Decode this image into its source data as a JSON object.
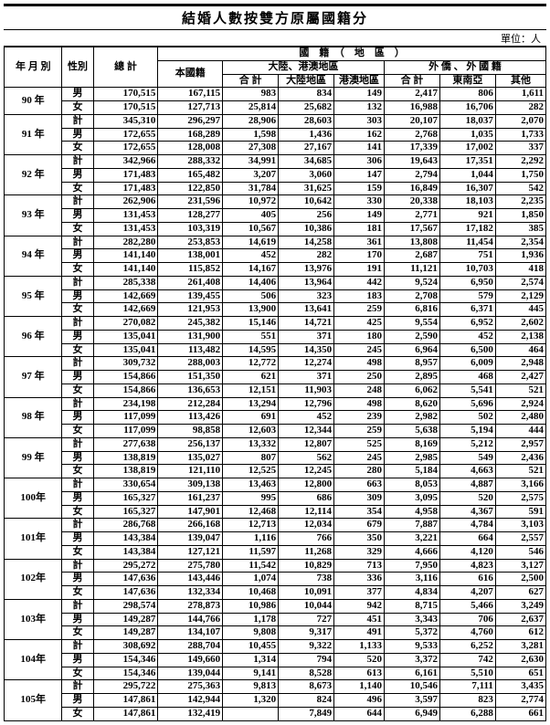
{
  "title": "結婚人數按雙方原屬國籍分",
  "unit_label": "單位：人",
  "headers": {
    "year": "年 月 別",
    "sex": "性別",
    "total": "總 計",
    "own_nat": "本國籍",
    "nat_region": "國　籍　（　地　區　）",
    "ml_hk_group": "大陸、港澳地區",
    "sub": "合 計",
    "mainland": "大陸地區",
    "hk": "港澳地區",
    "foreign_group": "外 僑 、 外 國 籍",
    "sea": "東南亞",
    "other": "其他"
  },
  "sex_labels": {
    "m": "男",
    "f": "女",
    "t": "計"
  },
  "rows": [
    {
      "year": "90 年",
      "data": [
        {
          "s": "m",
          "v": [
            "170,515",
            "167,115",
            "983",
            "834",
            "149",
            "2,417",
            "806",
            "1,611"
          ]
        },
        {
          "s": "f",
          "v": [
            "170,515",
            "127,713",
            "25,814",
            "25,682",
            "132",
            "16,988",
            "16,706",
            "282"
          ]
        }
      ]
    },
    {
      "year": "91 年",
      "data": [
        {
          "s": "t",
          "v": [
            "345,310",
            "296,297",
            "28,906",
            "28,603",
            "303",
            "20,107",
            "18,037",
            "2,070"
          ]
        },
        {
          "s": "m",
          "v": [
            "172,655",
            "168,289",
            "1,598",
            "1,436",
            "162",
            "2,768",
            "1,035",
            "1,733"
          ]
        },
        {
          "s": "f",
          "v": [
            "172,655",
            "128,008",
            "27,308",
            "27,167",
            "141",
            "17,339",
            "17,002",
            "337"
          ]
        }
      ]
    },
    {
      "year": "92 年",
      "data": [
        {
          "s": "t",
          "v": [
            "342,966",
            "288,332",
            "34,991",
            "34,685",
            "306",
            "19,643",
            "17,351",
            "2,292"
          ]
        },
        {
          "s": "m",
          "v": [
            "171,483",
            "165,482",
            "3,207",
            "3,060",
            "147",
            "2,794",
            "1,044",
            "1,750"
          ]
        },
        {
          "s": "f",
          "v": [
            "171,483",
            "122,850",
            "31,784",
            "31,625",
            "159",
            "16,849",
            "16,307",
            "542"
          ]
        }
      ]
    },
    {
      "year": "93 年",
      "data": [
        {
          "s": "t",
          "v": [
            "262,906",
            "231,596",
            "10,972",
            "10,642",
            "330",
            "20,338",
            "18,103",
            "2,235"
          ]
        },
        {
          "s": "m",
          "v": [
            "131,453",
            "128,277",
            "405",
            "256",
            "149",
            "2,771",
            "921",
            "1,850"
          ]
        },
        {
          "s": "f",
          "v": [
            "131,453",
            "103,319",
            "10,567",
            "10,386",
            "181",
            "17,567",
            "17,182",
            "385"
          ]
        }
      ]
    },
    {
      "year": "94 年",
      "data": [
        {
          "s": "t",
          "v": [
            "282,280",
            "253,853",
            "14,619",
            "14,258",
            "361",
            "13,808",
            "11,454",
            "2,354"
          ]
        },
        {
          "s": "m",
          "v": [
            "141,140",
            "138,001",
            "452",
            "282",
            "170",
            "2,687",
            "751",
            "1,936"
          ]
        },
        {
          "s": "f",
          "v": [
            "141,140",
            "115,852",
            "14,167",
            "13,976",
            "191",
            "11,121",
            "10,703",
            "418"
          ]
        }
      ]
    },
    {
      "year": "95 年",
      "data": [
        {
          "s": "t",
          "v": [
            "285,338",
            "261,408",
            "14,406",
            "13,964",
            "442",
            "9,524",
            "6,950",
            "2,574"
          ]
        },
        {
          "s": "m",
          "v": [
            "142,669",
            "139,455",
            "506",
            "323",
            "183",
            "2,708",
            "579",
            "2,129"
          ]
        },
        {
          "s": "f",
          "v": [
            "142,669",
            "121,953",
            "13,900",
            "13,641",
            "259",
            "6,816",
            "6,371",
            "445"
          ]
        }
      ]
    },
    {
      "year": "96 年",
      "data": [
        {
          "s": "t",
          "v": [
            "270,082",
            "245,382",
            "15,146",
            "14,721",
            "425",
            "9,554",
            "6,952",
            "2,602"
          ]
        },
        {
          "s": "m",
          "v": [
            "135,041",
            "131,900",
            "551",
            "371",
            "180",
            "2,590",
            "452",
            "2,138"
          ]
        },
        {
          "s": "f",
          "v": [
            "135,041",
            "113,482",
            "14,595",
            "14,350",
            "245",
            "6,964",
            "6,500",
            "464"
          ]
        }
      ]
    },
    {
      "year": "97 年",
      "data": [
        {
          "s": "t",
          "v": [
            "309,732",
            "288,003",
            "12,772",
            "12,274",
            "498",
            "8,957",
            "6,009",
            "2,948"
          ]
        },
        {
          "s": "m",
          "v": [
            "154,866",
            "151,350",
            "621",
            "371",
            "250",
            "2,895",
            "468",
            "2,427"
          ]
        },
        {
          "s": "f",
          "v": [
            "154,866",
            "136,653",
            "12,151",
            "11,903",
            "248",
            "6,062",
            "5,541",
            "521"
          ]
        }
      ]
    },
    {
      "year": "98 年",
      "data": [
        {
          "s": "t",
          "v": [
            "234,198",
            "212,284",
            "13,294",
            "12,796",
            "498",
            "8,620",
            "5,696",
            "2,924"
          ]
        },
        {
          "s": "m",
          "v": [
            "117,099",
            "113,426",
            "691",
            "452",
            "239",
            "2,982",
            "502",
            "2,480"
          ]
        },
        {
          "s": "f",
          "v": [
            "117,099",
            "98,858",
            "12,603",
            "12,344",
            "259",
            "5,638",
            "5,194",
            "444"
          ]
        }
      ]
    },
    {
      "year": "99 年",
      "data": [
        {
          "s": "t",
          "v": [
            "277,638",
            "256,137",
            "13,332",
            "12,807",
            "525",
            "8,169",
            "5,212",
            "2,957"
          ]
        },
        {
          "s": "m",
          "v": [
            "138,819",
            "135,027",
            "807",
            "562",
            "245",
            "2,985",
            "549",
            "2,436"
          ]
        },
        {
          "s": "f",
          "v": [
            "138,819",
            "121,110",
            "12,525",
            "12,245",
            "280",
            "5,184",
            "4,663",
            "521"
          ]
        }
      ]
    },
    {
      "year": "100年",
      "data": [
        {
          "s": "t",
          "v": [
            "330,654",
            "309,138",
            "13,463",
            "12,800",
            "663",
            "8,053",
            "4,887",
            "3,166"
          ]
        },
        {
          "s": "m",
          "v": [
            "165,327",
            "161,237",
            "995",
            "686",
            "309",
            "3,095",
            "520",
            "2,575"
          ]
        },
        {
          "s": "f",
          "v": [
            "165,327",
            "147,901",
            "12,468",
            "12,114",
            "354",
            "4,958",
            "4,367",
            "591"
          ]
        }
      ]
    },
    {
      "year": "101年",
      "data": [
        {
          "s": "t",
          "v": [
            "286,768",
            "266,168",
            "12,713",
            "12,034",
            "679",
            "7,887",
            "4,784",
            "3,103"
          ]
        },
        {
          "s": "m",
          "v": [
            "143,384",
            "139,047",
            "1,116",
            "766",
            "350",
            "3,221",
            "664",
            "2,557"
          ]
        },
        {
          "s": "f",
          "v": [
            "143,384",
            "127,121",
            "11,597",
            "11,268",
            "329",
            "4,666",
            "4,120",
            "546"
          ]
        }
      ]
    },
    {
      "year": "102年",
      "data": [
        {
          "s": "t",
          "v": [
            "295,272",
            "275,780",
            "11,542",
            "10,829",
            "713",
            "7,950",
            "4,823",
            "3,127"
          ]
        },
        {
          "s": "m",
          "v": [
            "147,636",
            "143,446",
            "1,074",
            "738",
            "336",
            "3,116",
            "616",
            "2,500"
          ]
        },
        {
          "s": "f",
          "v": [
            "147,636",
            "132,334",
            "10,468",
            "10,091",
            "377",
            "4,834",
            "4,207",
            "627"
          ]
        }
      ]
    },
    {
      "year": "103年",
      "data": [
        {
          "s": "t",
          "v": [
            "298,574",
            "278,873",
            "10,986",
            "10,044",
            "942",
            "8,715",
            "5,466",
            "3,249"
          ]
        },
        {
          "s": "m",
          "v": [
            "149,287",
            "144,766",
            "1,178",
            "727",
            "451",
            "3,343",
            "706",
            "2,637"
          ]
        },
        {
          "s": "f",
          "v": [
            "149,287",
            "134,107",
            "9,808",
            "9,317",
            "491",
            "5,372",
            "4,760",
            "612"
          ]
        }
      ]
    },
    {
      "year": "104年",
      "data": [
        {
          "s": "t",
          "v": [
            "308,692",
            "288,704",
            "10,455",
            "9,322",
            "1,133",
            "9,533",
            "6,252",
            "3,281"
          ]
        },
        {
          "s": "m",
          "v": [
            "154,346",
            "149,660",
            "1,314",
            "794",
            "520",
            "3,372",
            "742",
            "2,630"
          ]
        },
        {
          "s": "f",
          "v": [
            "154,346",
            "139,044",
            "9,141",
            "8,528",
            "613",
            "6,161",
            "5,510",
            "651"
          ]
        }
      ]
    },
    {
      "year": "105年",
      "data": [
        {
          "s": "t",
          "v": [
            "295,722",
            "275,363",
            "9,813",
            "8,673",
            "1,140",
            "10,546",
            "7,111",
            "3,435"
          ]
        },
        {
          "s": "m",
          "v": [
            "147,861",
            "142,944",
            "1,320",
            "824",
            "496",
            "3,597",
            "823",
            "2,774"
          ]
        },
        {
          "s": "f",
          "v": [
            "147,861",
            "132,419",
            "",
            "7,849",
            "644",
            "6,949",
            "6,288",
            "661"
          ]
        }
      ]
    }
  ]
}
